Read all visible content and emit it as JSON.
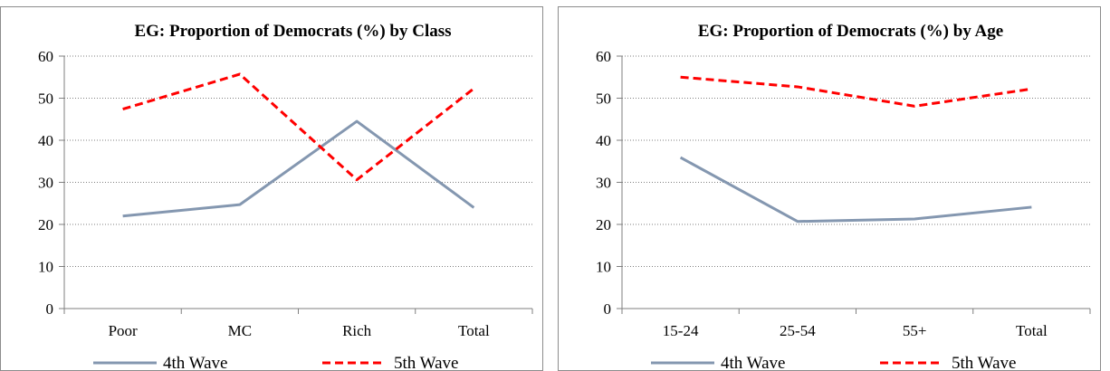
{
  "chart_data": [
    {
      "type": "line",
      "title": "EG: Proportion of Democrats (%) by Class",
      "xlabel": "",
      "ylabel": "",
      "categories": [
        "Poor",
        "MC",
        "Rich",
        "Total"
      ],
      "ylim": [
        0,
        60
      ],
      "yticks": [
        "0",
        "10",
        "20",
        "30",
        "40",
        "50",
        "60"
      ],
      "grid": "horizontal dotted",
      "legend": "bottom",
      "series": [
        {
          "name": "4th Wave",
          "values": [
            22,
            24.7,
            44.5,
            24
          ],
          "color": "#8497b0",
          "style": "solid"
        },
        {
          "name": "5th Wave",
          "values": [
            47.4,
            55.7,
            30.6,
            52.3
          ],
          "color": "#ff0000",
          "style": "dashed"
        }
      ]
    },
    {
      "type": "line",
      "title": "EG: Proportion of Democrats (%) by Age",
      "xlabel": "",
      "ylabel": "",
      "categories": [
        "15-24",
        "25-54",
        "55+",
        "Total"
      ],
      "ylim": [
        0,
        60
      ],
      "yticks": [
        "0",
        "10",
        "20",
        "30",
        "40",
        "50",
        "60"
      ],
      "grid": "horizontal dotted",
      "legend": "bottom",
      "series": [
        {
          "name": "4th Wave",
          "values": [
            35.9,
            20.7,
            21.3,
            24.1
          ],
          "color": "#8497b0",
          "style": "solid"
        },
        {
          "name": "5th Wave",
          "values": [
            55,
            52.7,
            48.1,
            52.2
          ],
          "color": "#ff0000",
          "style": "dashed"
        }
      ]
    }
  ]
}
